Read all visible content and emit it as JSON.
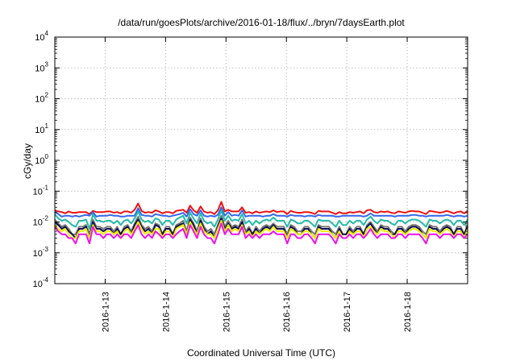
{
  "chart_data": {
    "type": "line",
    "title": "/data/run/goesPlots/archive/2016-01-18/flux/../bryn/7daysEarth.plot",
    "xlabel": "Coordinated Universal Time (UTC)",
    "ylabel": "cGy/day",
    "y_scale": "log",
    "ylim": [
      0.0001,
      10000
    ],
    "y_ticks": [
      {
        "base": "10",
        "exp": "-4"
      },
      {
        "base": "10",
        "exp": "-3"
      },
      {
        "base": "10",
        "exp": "-2"
      },
      {
        "base": "10",
        "exp": "-1"
      },
      {
        "base": "10",
        "exp": "0"
      },
      {
        "base": "10",
        "exp": "1"
      },
      {
        "base": "10",
        "exp": "2"
      },
      {
        "base": "10",
        "exp": "3"
      },
      {
        "base": "10",
        "exp": "4"
      }
    ],
    "x_range": [
      "2016-01-12 04:00",
      "2016-01-19 00:00"
    ],
    "x_ticks": [
      "2016-1-13",
      "2016-1-14",
      "2016-1-15",
      "2016-1-16",
      "2016-1-17",
      "2016-1-18"
    ],
    "grid": true,
    "legend": "none",
    "samples_per_series": 120,
    "series": [
      {
        "color": "#ee1111",
        "values": [
          0.024,
          0.022,
          0.021,
          0.019,
          0.022,
          0.02,
          0.02,
          0.021,
          0.021,
          0.021,
          0.018,
          0.023,
          0.021,
          0.021,
          0.021,
          0.022,
          0.022,
          0.02,
          0.021,
          0.019,
          0.022,
          0.022,
          0.02,
          0.025,
          0.04,
          0.023,
          0.02,
          0.021,
          0.02,
          0.024,
          0.022,
          0.019,
          0.021,
          0.021,
          0.019,
          0.023,
          0.024,
          0.025,
          0.02,
          0.034,
          0.024,
          0.02,
          0.032,
          0.022,
          0.02,
          0.021,
          0.018,
          0.024,
          0.045,
          0.022,
          0.025,
          0.022,
          0.022,
          0.022,
          0.03,
          0.02,
          0.021,
          0.019,
          0.022,
          0.02,
          0.021,
          0.022,
          0.021,
          0.024,
          0.021,
          0.022,
          0.022,
          0.018,
          0.023,
          0.021,
          0.02,
          0.02,
          0.021,
          0.021,
          0.02,
          0.018,
          0.023,
          0.022,
          0.022,
          0.022,
          0.02,
          0.018,
          0.021,
          0.019,
          0.019,
          0.021,
          0.02,
          0.021,
          0.022,
          0.019,
          0.024,
          0.025,
          0.021,
          0.02,
          0.022,
          0.021,
          0.022,
          0.02,
          0.019,
          0.022,
          0.021,
          0.02,
          0.022,
          0.023,
          0.022,
          0.022,
          0.02,
          0.018,
          0.023,
          0.022,
          0.021,
          0.02,
          0.021,
          0.023,
          0.021,
          0.019,
          0.021,
          0.022,
          0.019,
          0.023
        ]
      },
      {
        "color": "#3366ee",
        "values": [
          0.022,
          0.018,
          0.015,
          0.016,
          0.016,
          0.015,
          0.016,
          0.015,
          0.016,
          0.017,
          0.016,
          0.021,
          0.015,
          0.016,
          0.016,
          0.016,
          0.017,
          0.016,
          0.016,
          0.015,
          0.015,
          0.016,
          0.016,
          0.016,
          0.028,
          0.017,
          0.016,
          0.016,
          0.015,
          0.018,
          0.017,
          0.016,
          0.016,
          0.015,
          0.016,
          0.017,
          0.018,
          0.02,
          0.015,
          0.026,
          0.018,
          0.016,
          0.024,
          0.016,
          0.015,
          0.016,
          0.015,
          0.017,
          0.03,
          0.016,
          0.021,
          0.016,
          0.017,
          0.016,
          0.024,
          0.015,
          0.016,
          0.016,
          0.016,
          0.016,
          0.015,
          0.016,
          0.016,
          0.018,
          0.016,
          0.016,
          0.016,
          0.015,
          0.017,
          0.016,
          0.016,
          0.016,
          0.015,
          0.016,
          0.016,
          0.015,
          0.017,
          0.016,
          0.016,
          0.016,
          0.016,
          0.015,
          0.015,
          0.016,
          0.016,
          0.016,
          0.016,
          0.016,
          0.016,
          0.015,
          0.016,
          0.019,
          0.016,
          0.016,
          0.016,
          0.016,
          0.016,
          0.016,
          0.015,
          0.016,
          0.016,
          0.016,
          0.016,
          0.017,
          0.017,
          0.016,
          0.016,
          0.015,
          0.016,
          0.016,
          0.016,
          0.016,
          0.016,
          0.017,
          0.016,
          0.015,
          0.016,
          0.016,
          0.015,
          0.016
        ]
      },
      {
        "color": "#22bbaa",
        "values": [
          0.018,
          0.013,
          0.011,
          0.012,
          0.01,
          0.008,
          0.007,
          0.011,
          0.011,
          0.012,
          0.006,
          0.018,
          0.011,
          0.011,
          0.01,
          0.011,
          0.011,
          0.009,
          0.011,
          0.008,
          0.011,
          0.012,
          0.009,
          0.013,
          0.022,
          0.012,
          0.01,
          0.011,
          0.009,
          0.013,
          0.012,
          0.008,
          0.011,
          0.011,
          0.008,
          0.012,
          0.014,
          0.016,
          0.009,
          0.02,
          0.013,
          0.009,
          0.019,
          0.011,
          0.009,
          0.01,
          0.007,
          0.012,
          0.024,
          0.011,
          0.016,
          0.011,
          0.012,
          0.011,
          0.018,
          0.009,
          0.011,
          0.008,
          0.011,
          0.009,
          0.011,
          0.012,
          0.011,
          0.014,
          0.011,
          0.011,
          0.011,
          0.007,
          0.012,
          0.011,
          0.009,
          0.009,
          0.011,
          0.011,
          0.009,
          0.007,
          0.012,
          0.011,
          0.011,
          0.011,
          0.009,
          0.007,
          0.011,
          0.008,
          0.008,
          0.011,
          0.009,
          0.011,
          0.011,
          0.008,
          0.012,
          0.015,
          0.011,
          0.009,
          0.012,
          0.011,
          0.011,
          0.009,
          0.008,
          0.011,
          0.011,
          0.009,
          0.011,
          0.012,
          0.012,
          0.011,
          0.009,
          0.007,
          0.012,
          0.011,
          0.011,
          0.009,
          0.011,
          0.012,
          0.011,
          0.008,
          0.011,
          0.011,
          0.008,
          0.012
        ]
      },
      {
        "color": "#777777",
        "values": [
          0.012,
          0.009,
          0.007,
          0.008,
          0.006,
          0.004,
          0.004,
          0.007,
          0.007,
          0.008,
          0.004,
          0.012,
          0.007,
          0.007,
          0.006,
          0.007,
          0.007,
          0.005,
          0.007,
          0.004,
          0.007,
          0.008,
          0.005,
          0.009,
          0.015,
          0.008,
          0.006,
          0.007,
          0.005,
          0.009,
          0.008,
          0.004,
          0.007,
          0.007,
          0.004,
          0.008,
          0.009,
          0.011,
          0.005,
          0.014,
          0.009,
          0.005,
          0.013,
          0.007,
          0.005,
          0.006,
          0.004,
          0.008,
          0.016,
          0.007,
          0.011,
          0.007,
          0.008,
          0.007,
          0.012,
          0.005,
          0.007,
          0.004,
          0.007,
          0.005,
          0.007,
          0.008,
          0.007,
          0.009,
          0.007,
          0.007,
          0.007,
          0.004,
          0.008,
          0.007,
          0.005,
          0.005,
          0.007,
          0.007,
          0.005,
          0.004,
          0.008,
          0.007,
          0.007,
          0.007,
          0.005,
          0.004,
          0.007,
          0.004,
          0.004,
          0.007,
          0.005,
          0.007,
          0.007,
          0.004,
          0.008,
          0.01,
          0.007,
          0.005,
          0.008,
          0.007,
          0.007,
          0.005,
          0.004,
          0.007,
          0.007,
          0.005,
          0.007,
          0.008,
          0.008,
          0.007,
          0.005,
          0.004,
          0.008,
          0.007,
          0.007,
          0.005,
          0.007,
          0.008,
          0.007,
          0.004,
          0.007,
          0.007,
          0.004,
          0.008
        ]
      },
      {
        "color": "#111155",
        "values": [
          0.01,
          0.008,
          0.006,
          0.007,
          0.005,
          0.004,
          0.003,
          0.006,
          0.006,
          0.007,
          0.003,
          0.01,
          0.006,
          0.006,
          0.005,
          0.006,
          0.006,
          0.004,
          0.006,
          0.004,
          0.006,
          0.007,
          0.004,
          0.008,
          0.012,
          0.007,
          0.005,
          0.006,
          0.004,
          0.008,
          0.007,
          0.004,
          0.006,
          0.006,
          0.004,
          0.007,
          0.008,
          0.009,
          0.004,
          0.012,
          0.008,
          0.004,
          0.011,
          0.006,
          0.004,
          0.005,
          0.003,
          0.007,
          0.013,
          0.006,
          0.009,
          0.006,
          0.007,
          0.006,
          0.01,
          0.004,
          0.006,
          0.004,
          0.006,
          0.004,
          0.006,
          0.007,
          0.006,
          0.008,
          0.006,
          0.006,
          0.006,
          0.003,
          0.007,
          0.006,
          0.004,
          0.004,
          0.006,
          0.006,
          0.004,
          0.003,
          0.007,
          0.006,
          0.006,
          0.006,
          0.004,
          0.003,
          0.006,
          0.004,
          0.004,
          0.006,
          0.004,
          0.006,
          0.006,
          0.004,
          0.007,
          0.009,
          0.006,
          0.004,
          0.007,
          0.006,
          0.006,
          0.004,
          0.004,
          0.006,
          0.006,
          0.004,
          0.006,
          0.007,
          0.007,
          0.006,
          0.004,
          0.003,
          0.007,
          0.006,
          0.006,
          0.004,
          0.006,
          0.007,
          0.006,
          0.004,
          0.006,
          0.006,
          0.004,
          0.007
        ]
      },
      {
        "color": "#eeee00",
        "values": [
          0.008,
          0.006,
          0.005,
          0.006,
          0.004,
          0.003,
          0.003,
          0.005,
          0.005,
          0.006,
          0.003,
          0.008,
          0.005,
          0.005,
          0.004,
          0.005,
          0.005,
          0.004,
          0.005,
          0.003,
          0.005,
          0.006,
          0.004,
          0.006,
          0.01,
          0.006,
          0.004,
          0.005,
          0.004,
          0.006,
          0.006,
          0.003,
          0.005,
          0.005,
          0.003,
          0.006,
          0.007,
          0.008,
          0.004,
          0.01,
          0.006,
          0.004,
          0.009,
          0.005,
          0.004,
          0.004,
          0.003,
          0.006,
          0.011,
          0.005,
          0.008,
          0.005,
          0.006,
          0.005,
          0.008,
          0.004,
          0.005,
          0.003,
          0.005,
          0.004,
          0.005,
          0.006,
          0.005,
          0.007,
          0.005,
          0.005,
          0.005,
          0.003,
          0.006,
          0.005,
          0.004,
          0.004,
          0.005,
          0.005,
          0.004,
          0.003,
          0.006,
          0.005,
          0.005,
          0.005,
          0.004,
          0.003,
          0.005,
          0.003,
          0.003,
          0.005,
          0.004,
          0.005,
          0.005,
          0.003,
          0.006,
          0.007,
          0.005,
          0.004,
          0.006,
          0.005,
          0.005,
          0.004,
          0.003,
          0.005,
          0.005,
          0.004,
          0.005,
          0.006,
          0.006,
          0.005,
          0.004,
          0.003,
          0.006,
          0.005,
          0.005,
          0.004,
          0.005,
          0.006,
          0.005,
          0.003,
          0.005,
          0.005,
          0.003,
          0.006
        ]
      },
      {
        "color": "#ee11ee",
        "values": [
          0.007,
          0.005,
          0.004,
          0.004,
          0.003,
          0.003,
          0.002,
          0.004,
          0.004,
          0.004,
          0.002,
          0.007,
          0.004,
          0.004,
          0.003,
          0.004,
          0.004,
          0.003,
          0.004,
          0.003,
          0.004,
          0.004,
          0.003,
          0.005,
          0.008,
          0.004,
          0.003,
          0.004,
          0.003,
          0.005,
          0.004,
          0.003,
          0.004,
          0.004,
          0.003,
          0.004,
          0.005,
          0.006,
          0.003,
          0.008,
          0.005,
          0.003,
          0.007,
          0.004,
          0.003,
          0.003,
          0.002,
          0.004,
          0.009,
          0.004,
          0.006,
          0.004,
          0.004,
          0.004,
          0.007,
          0.003,
          0.004,
          0.003,
          0.004,
          0.003,
          0.004,
          0.004,
          0.004,
          0.005,
          0.004,
          0.004,
          0.004,
          0.002,
          0.004,
          0.004,
          0.003,
          0.003,
          0.004,
          0.004,
          0.003,
          0.002,
          0.004,
          0.004,
          0.004,
          0.004,
          0.003,
          0.002,
          0.004,
          0.003,
          0.003,
          0.004,
          0.003,
          0.004,
          0.004,
          0.003,
          0.004,
          0.006,
          0.004,
          0.003,
          0.004,
          0.004,
          0.004,
          0.003,
          0.003,
          0.004,
          0.004,
          0.003,
          0.004,
          0.004,
          0.004,
          0.004,
          0.003,
          0.002,
          0.004,
          0.004,
          0.004,
          0.003,
          0.004,
          0.004,
          0.004,
          0.003,
          0.004,
          0.004,
          0.003,
          0.004
        ]
      }
    ]
  }
}
